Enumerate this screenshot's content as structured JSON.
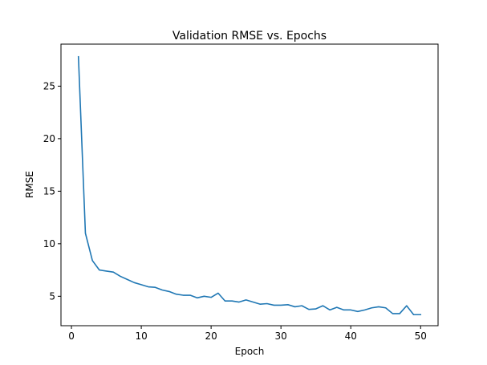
{
  "chart_data": {
    "type": "line",
    "title": "Validation RMSE vs. Epochs",
    "xlabel": "Epoch",
    "ylabel": "RMSE",
    "xlim": [
      -1.5,
      52.5
    ],
    "ylim": [
      2.2,
      29.0
    ],
    "xticks": [
      0,
      10,
      20,
      30,
      40,
      50
    ],
    "yticks": [
      5,
      10,
      15,
      20,
      25
    ],
    "x_tick_labels": [
      "0",
      "10",
      "20",
      "30",
      "40",
      "50"
    ],
    "y_tick_labels": [
      "5",
      "10",
      "15",
      "20",
      "25"
    ],
    "grid": false,
    "legend": false,
    "series": [
      {
        "color": "#1f77b4",
        "x": [
          1,
          2,
          3,
          4,
          5,
          6,
          7,
          8,
          9,
          10,
          11,
          12,
          13,
          14,
          15,
          16,
          17,
          18,
          19,
          20,
          21,
          22,
          23,
          24,
          25,
          26,
          27,
          28,
          29,
          30,
          31,
          32,
          33,
          34,
          35,
          36,
          37,
          38,
          39,
          40,
          41,
          42,
          43,
          44,
          45,
          46,
          47,
          48,
          49,
          50
        ],
        "y": [
          27.8,
          11.0,
          8.4,
          7.5,
          7.4,
          7.3,
          6.9,
          6.6,
          6.3,
          6.1,
          5.9,
          5.85,
          5.6,
          5.45,
          5.2,
          5.1,
          5.1,
          4.85,
          5.0,
          4.9,
          5.3,
          4.55,
          4.55,
          4.45,
          4.65,
          4.45,
          4.25,
          4.3,
          4.15,
          4.15,
          4.2,
          4.0,
          4.1,
          3.75,
          3.8,
          4.1,
          3.7,
          3.95,
          3.7,
          3.7,
          3.55,
          3.7,
          3.9,
          4.0,
          3.9,
          3.35,
          3.35,
          4.1,
          3.25,
          3.25
        ]
      }
    ]
  }
}
